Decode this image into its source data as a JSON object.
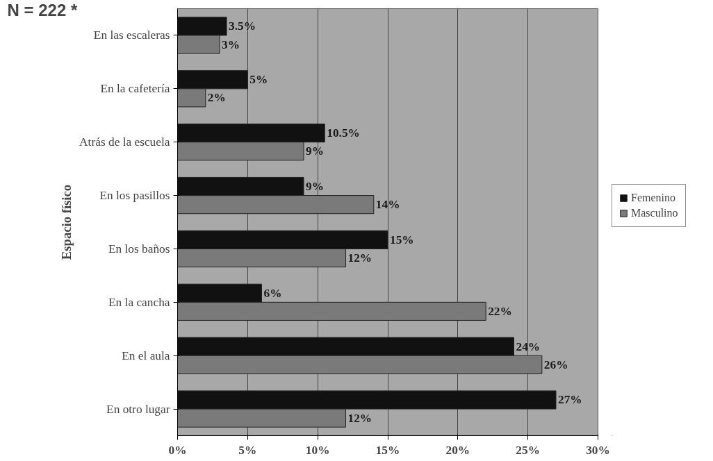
{
  "chart_data": {
    "type": "bar",
    "orientation": "horizontal",
    "ylabel": "Espacio físico",
    "annotations": [
      "N = 222 *"
    ],
    "categories": [
      "En las escaleras",
      "En la cafetería",
      "Atrás de la escuela",
      "En los pasillos",
      "En los baños",
      "En la cancha",
      "En el aula",
      "En otro lugar"
    ],
    "series": [
      {
        "name": "Femenino",
        "color": "#111111",
        "values": [
          3.5,
          5,
          10.5,
          9,
          15,
          6,
          24,
          27
        ],
        "value_labels": [
          "3.5%",
          "5%",
          "10.5%",
          "9%",
          "15%",
          "6%",
          "24%",
          "27%"
        ]
      },
      {
        "name": "Masculino",
        "color": "#7a7a7a",
        "values": [
          3,
          2,
          9,
          14,
          12,
          22,
          26,
          12
        ],
        "value_labels": [
          "3%",
          "2%",
          "9%",
          "14%",
          "12%",
          "22%",
          "26%",
          "12%"
        ]
      }
    ],
    "xlim": [
      0,
      30
    ],
    "xticks": [
      {
        "value": 0,
        "label": "0%"
      },
      {
        "value": 5,
        "label": "5%"
      },
      {
        "value": 10,
        "label": "10%"
      },
      {
        "value": 15,
        "label": "15%"
      },
      {
        "value": 20,
        "label": "20%"
      },
      {
        "value": 25,
        "label": "25%"
      },
      {
        "value": 30,
        "label": "30%"
      }
    ],
    "grid": "x",
    "legend": "right"
  }
}
